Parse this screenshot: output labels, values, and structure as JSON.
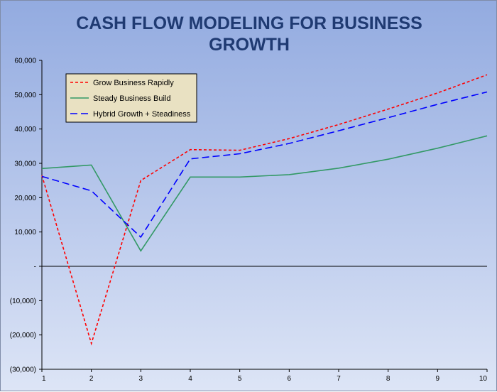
{
  "chart_data": {
    "type": "line",
    "title_lines": [
      "CASH FLOW MODELING FOR BUSINESS",
      "GROWTH"
    ],
    "xlabel": "",
    "ylabel": "",
    "x": [
      1,
      2,
      3,
      4,
      5,
      6,
      7,
      8,
      9,
      10
    ],
    "x_tick_labels": [
      "1",
      "2",
      "3",
      "4",
      "5",
      "6",
      "7",
      "8",
      "9",
      "10"
    ],
    "ylim": [
      -30000,
      60000
    ],
    "y_ticks": [
      60000,
      50000,
      40000,
      30000,
      20000,
      10000,
      0,
      -10000,
      -20000,
      -30000
    ],
    "y_tick_labels": [
      "60,000",
      "50,000",
      "40,000",
      "30,000",
      "20,000",
      "10,000",
      "-",
      "(10,000)",
      "(20,000)",
      "(30,000)"
    ],
    "grid": false,
    "legend_position": "top-left",
    "series": [
      {
        "name": "Grow Business Rapidly",
        "color": "#ff0000",
        "dash": "dotted",
        "values": [
          26500,
          -22500,
          25000,
          34000,
          33800,
          37200,
          41300,
          45800,
          50500,
          55800
        ]
      },
      {
        "name": "Steady Business Build",
        "color": "#339966",
        "dash": "solid",
        "values": [
          28500,
          29500,
          4500,
          26000,
          26000,
          26700,
          28600,
          31200,
          34400,
          38000
        ]
      },
      {
        "name": "Hybrid Growth + Steadiness",
        "color": "#0000ff",
        "dash": "dashed",
        "values": [
          26200,
          22000,
          8500,
          31300,
          32800,
          35800,
          39500,
          43300,
          47200,
          50800
        ]
      }
    ]
  }
}
